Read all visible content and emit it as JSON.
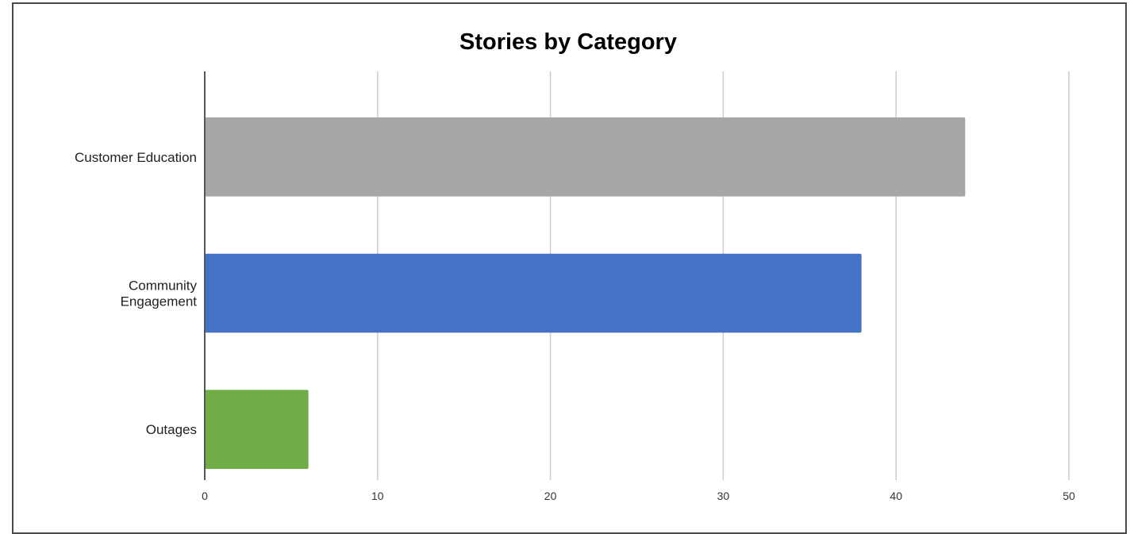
{
  "chart_data": {
    "type": "bar",
    "orientation": "horizontal",
    "title": "Stories by Category",
    "categories": [
      [
        "Customer Education"
      ],
      [
        "Community",
        "Engagement"
      ],
      [
        "Outages"
      ]
    ],
    "values": [
      44,
      38,
      6
    ],
    "colors": [
      "#a6a6a6",
      "#4472c4",
      "#70ad47"
    ],
    "xlim": [
      0,
      50
    ],
    "xticks": [
      0,
      10,
      20,
      30,
      40,
      50
    ],
    "grid": true,
    "legend": "none"
  }
}
